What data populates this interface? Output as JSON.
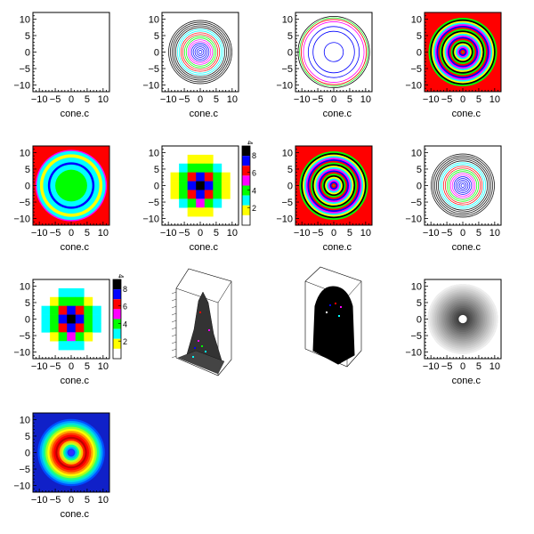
{
  "chart_data": [
    {
      "type": "heatmap",
      "style": "empty",
      "xlabel": "cone.c",
      "xlim": [
        -12,
        12
      ],
      "ylim": [
        -12,
        12
      ],
      "xticks": [
        "−10",
        "−5",
        "0",
        "5",
        "10"
      ],
      "yticks": [
        "10",
        "5",
        "0",
        "−5",
        "−10"
      ]
    },
    {
      "type": "heatmap",
      "style": "contour-lines",
      "xlabel": "cone.c",
      "xlim": [
        -12,
        12
      ],
      "ylim": [
        -12,
        12
      ],
      "xticks": [
        "−10",
        "−5",
        "0",
        "5",
        "10"
      ],
      "yticks": [
        "10",
        "5",
        "0",
        "−5",
        "−10"
      ]
    },
    {
      "type": "heatmap",
      "style": "contour-sparse",
      "xlabel": "cone.c",
      "xlim": [
        -12,
        12
      ],
      "ylim": [
        -12,
        12
      ],
      "xticks": [
        "−10",
        "−5",
        "0",
        "5",
        "10"
      ],
      "yticks": [
        "10",
        "5",
        "0",
        "−5",
        "−10"
      ]
    },
    {
      "type": "heatmap",
      "style": "filled-rings",
      "xlabel": "cone.c",
      "xlim": [
        -12,
        12
      ],
      "ylim": [
        -12,
        12
      ],
      "xticks": [
        "−10",
        "−5",
        "0",
        "5",
        "10"
      ],
      "yticks": [
        "10",
        "5",
        "0",
        "−5",
        "−10"
      ]
    },
    {
      "type": "heatmap",
      "style": "filled-coarse",
      "xlabel": "cone.c",
      "xlim": [
        -12,
        12
      ],
      "ylim": [
        -12,
        12
      ],
      "xticks": [
        "−10",
        "−5",
        "0",
        "5",
        "10"
      ],
      "yticks": [
        "10",
        "5",
        "0",
        "−5",
        "−10"
      ]
    },
    {
      "type": "heatmap",
      "style": "cells",
      "xlabel": "cone.c",
      "xlim": [
        -12,
        12
      ],
      "ylim": [
        -12,
        12
      ],
      "xticks": [
        "−10",
        "−5",
        "0",
        "5",
        "10"
      ],
      "yticks": [
        "10",
        "5",
        "0",
        "−5",
        "−10"
      ],
      "palette_ticks": [
        "8",
        "6",
        "4",
        "2"
      ],
      "palette_title": "4"
    },
    {
      "type": "heatmap",
      "style": "filled-rings",
      "xlabel": "cone.c",
      "xlim": [
        -12,
        12
      ],
      "ylim": [
        -12,
        12
      ],
      "xticks": [
        "−10",
        "−5",
        "0",
        "5",
        "10"
      ],
      "yticks": [
        "10",
        "5",
        "0",
        "−5",
        "−10"
      ]
    },
    {
      "type": "heatmap",
      "style": "contour-lines",
      "xlabel": "cone.c",
      "xlim": [
        -12,
        12
      ],
      "ylim": [
        -12,
        12
      ],
      "xticks": [
        "−10",
        "−5",
        "0",
        "5",
        "10"
      ],
      "yticks": [
        "10",
        "5",
        "0",
        "−5",
        "−10"
      ]
    },
    {
      "type": "heatmap",
      "style": "cells",
      "xlabel": "cone.c",
      "xlim": [
        -12,
        12
      ],
      "ylim": [
        -12,
        12
      ],
      "xticks": [
        "−10",
        "−5",
        "0",
        "5",
        "10"
      ],
      "yticks": [
        "10",
        "5",
        "0",
        "−5",
        "−10"
      ],
      "palette_ticks": [
        "8",
        "6",
        "4",
        "2"
      ],
      "palette_title": "4"
    },
    {
      "type": "surface",
      "style": "lego"
    },
    {
      "type": "surface",
      "style": "surf"
    },
    {
      "type": "heatmap",
      "style": "gray-rings",
      "xlabel": "cone.c",
      "xlim": [
        -12,
        12
      ],
      "ylim": [
        -12,
        12
      ],
      "xticks": [
        "−10",
        "−5",
        "0",
        "5",
        "10"
      ],
      "yticks": [
        "10",
        "5",
        "0",
        "−5",
        "−10"
      ]
    },
    {
      "type": "heatmap",
      "style": "rainbow-smooth",
      "xlabel": "cone.c",
      "xlim": [
        -12,
        12
      ],
      "ylim": [
        -12,
        12
      ],
      "xticks": [
        "−10",
        "−5",
        "0",
        "5",
        "10"
      ],
      "yticks": [
        "10",
        "5",
        "0",
        "−5",
        "−10"
      ]
    }
  ],
  "colors": {
    "root_palette": [
      "#ffff00",
      "#00ffff",
      "#ff00ff",
      "#00ff00",
      "#ff0000",
      "#0000ff",
      "#000000"
    ],
    "cell_palette": [
      "#ffff00",
      "#00ff00",
      "#00ffff",
      "#ff00ff",
      "#ff0000",
      "#0000ff",
      "#000000"
    ],
    "frame": "#000000"
  }
}
